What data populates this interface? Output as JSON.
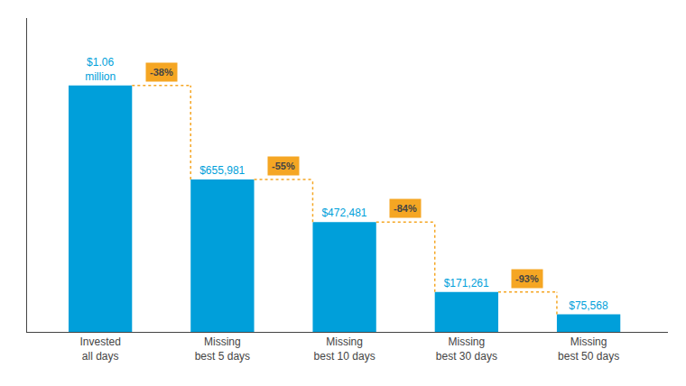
{
  "chart_data": {
    "type": "bar",
    "categories": [
      "Invested\nall days",
      "Missing\nbest 5 days",
      "Missing\nbest 10 days",
      "Missing\nbest 30 days",
      "Missing\nbest 50 days"
    ],
    "values": [
      1060000,
      655981,
      472481,
      171261,
      75568
    ],
    "value_labels": [
      "$1.06\nmillion",
      "$655,981",
      "$472,481",
      "$171,261",
      "$75,568"
    ],
    "data_labels": true,
    "color": "#009FDA",
    "ylim": [
      0,
      1350000
    ],
    "tick_labels": "x",
    "grid": false,
    "annotations": [
      {
        "category": "Missing\nbest 5 days",
        "text": "-38%",
        "color": "#F5A623"
      },
      {
        "category": "Missing\nbest 10 days",
        "text": "-55%",
        "color": "#F5A623"
      },
      {
        "category": "Missing\nbest 30 days",
        "text": "-84%",
        "color": "#F5A623"
      },
      {
        "category": "Missing\nbest 50 days",
        "text": "-93%",
        "color": "#F5A623"
      }
    ]
  }
}
